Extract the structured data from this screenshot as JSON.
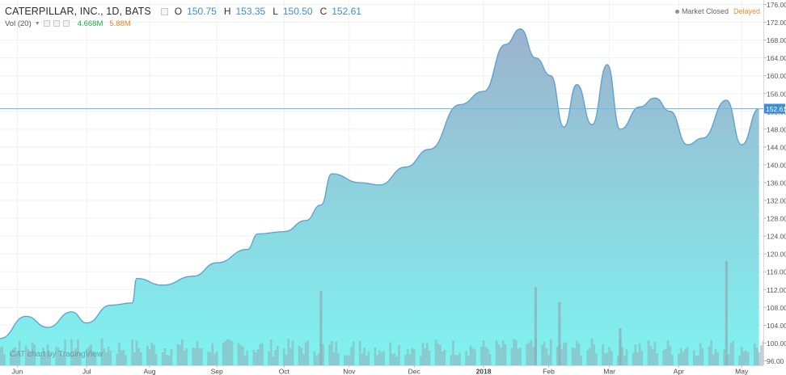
{
  "header": {
    "symbol": "CATERPILLAR, INC., 1D, BATS",
    "ohlc": [
      {
        "key": "O",
        "value": "150.75"
      },
      {
        "key": "H",
        "value": "153.35"
      },
      {
        "key": "L",
        "value": "150.50"
      },
      {
        "key": "C",
        "value": "152.61"
      }
    ]
  },
  "volume_indicator": {
    "label": "Vol (20)",
    "value_1": "4.668M",
    "value_2": "5.88M"
  },
  "status": {
    "market": "Market Closed",
    "delayed": "Delayed"
  },
  "watermark": "CAT chart by TradingView",
  "colors": {
    "line": "#5a9fd4",
    "area_top": "#9db2cc",
    "area_bottom": "#7ff3f0",
    "volume_bar": "#8fa9b5",
    "price_label_bg": "#3b8fd9",
    "price_line": "#6fb7e3",
    "ohlc_value": "#3a8ed8",
    "vol_value_1": "#27a844",
    "vol_value_2": "#f2802b",
    "delayed": "#f28a2a"
  },
  "chart_data": {
    "type": "area",
    "series": [
      {
        "x": [
          "2017-05-24",
          "2017-06-05",
          "2017-06-15",
          "2017-06-26",
          "2017-07-03",
          "2017-07-14",
          "2017-07-24",
          "2017-07-26",
          "2017-08-07",
          "2017-08-21",
          "2017-09-01",
          "2017-09-15",
          "2017-09-20",
          "2017-10-02",
          "2017-10-12",
          "2017-10-19",
          "2017-10-24",
          "2017-11-06",
          "2017-11-15",
          "2017-11-27",
          "2017-12-08",
          "2017-12-22",
          "2018-01-02",
          "2018-01-12",
          "2018-01-19",
          "2018-01-26",
          "2018-02-02",
          "2018-02-08",
          "2018-02-14",
          "2018-02-21",
          "2018-02-28",
          "2018-03-06",
          "2018-03-15",
          "2018-03-22",
          "2018-03-29",
          "2018-04-06",
          "2018-04-13",
          "2018-04-24",
          "2018-05-01",
          "2018-05-09"
        ],
        "values": [
          101.0,
          106.0,
          103.5,
          107.0,
          104.5,
          108.5,
          109.0,
          114.5,
          113.0,
          115.0,
          118.0,
          121.0,
          124.5,
          125.0,
          127.5,
          131.0,
          138.0,
          136.0,
          135.5,
          139.5,
          143.5,
          153.5,
          156.5,
          167.0,
          170.5,
          164.0,
          160.0,
          148.5,
          158.0,
          149.0,
          162.5,
          148.0,
          153.0,
          155.0,
          152.0,
          144.5,
          146.0,
          154.5,
          144.5,
          152.6
        ]
      }
    ],
    "volume": {
      "highlights": [
        {
          "x": "2017-10-19",
          "value": 10.0
        },
        {
          "x": "2018-01-26",
          "value": 10.5
        },
        {
          "x": "2018-02-06",
          "value": 8.5
        },
        {
          "x": "2018-03-06",
          "value": 5.0
        },
        {
          "x": "2018-04-24",
          "value": 14.0
        }
      ],
      "unit": "M",
      "scale": "relative"
    },
    "y_axis": {
      "ticks": [
        96,
        100,
        104,
        108,
        112,
        116,
        120,
        124,
        128,
        132,
        136,
        140,
        144,
        148,
        152,
        156,
        160,
        164,
        168,
        172,
        176
      ],
      "tick_labels": [
        "96.00",
        "100.00",
        "104.00",
        "108.00",
        "112.00",
        "116.00",
        "120.00",
        "124.00",
        "128.00",
        "132.00",
        "136.00",
        "140.00",
        "144.00",
        "148.00",
        "152.00",
        "156.00",
        "160.00",
        "164.00",
        "168.00",
        "172.00",
        "176.00"
      ],
      "range": [
        95,
        177
      ]
    },
    "x_axis": {
      "start": "2017-05-24",
      "end": "2018-05-11",
      "ticks": [
        {
          "date": "2017-06-01",
          "label": "Jun"
        },
        {
          "date": "2017-07-03",
          "label": "Jul"
        },
        {
          "date": "2017-08-01",
          "label": "Aug"
        },
        {
          "date": "2017-09-01",
          "label": "Sep"
        },
        {
          "date": "2017-10-02",
          "label": "Oct"
        },
        {
          "date": "2017-11-01",
          "label": "Nov"
        },
        {
          "date": "2017-12-01",
          "label": "Dec"
        },
        {
          "date": "2018-01-02",
          "label": "2018",
          "bold": true
        },
        {
          "date": "2018-02-01",
          "label": "Feb"
        },
        {
          "date": "2018-03-01",
          "label": "Mar"
        },
        {
          "date": "2018-04-02",
          "label": "Apr"
        },
        {
          "date": "2018-05-01",
          "label": "May"
        }
      ]
    },
    "last_price": 152.61,
    "last_price_label": "152.61",
    "grid": true
  }
}
